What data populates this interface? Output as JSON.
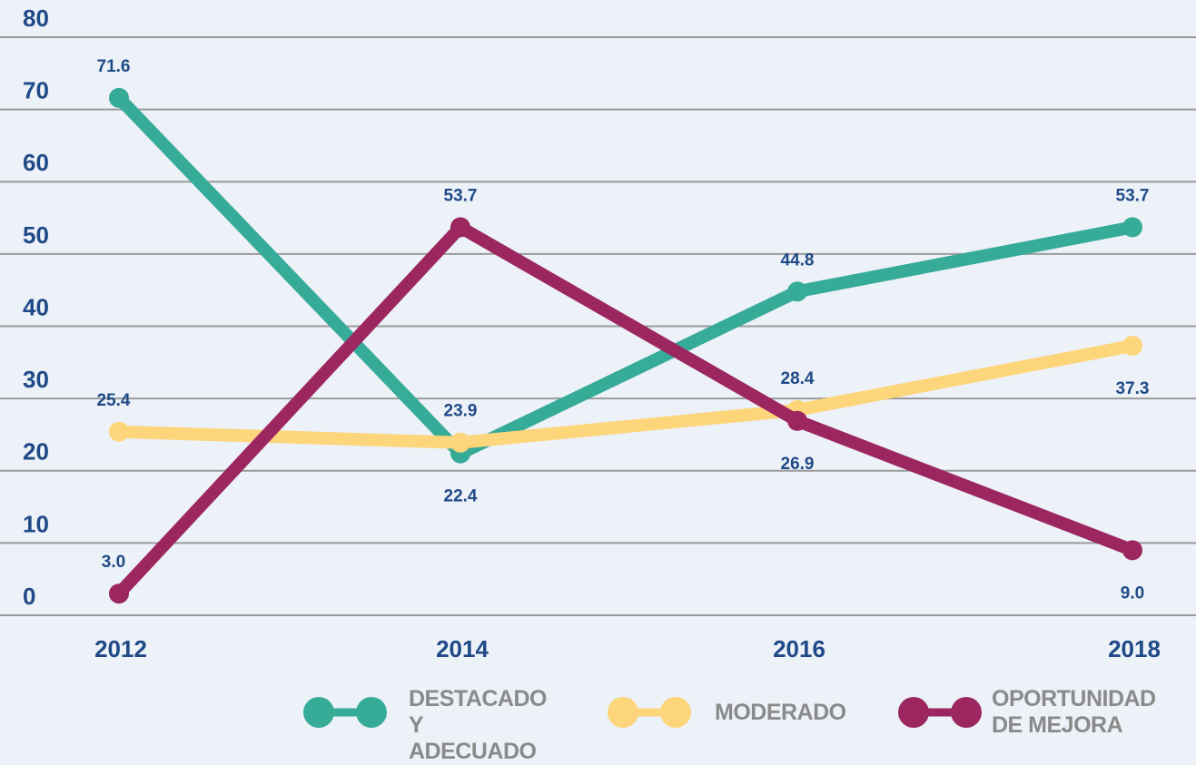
{
  "chart_data": {
    "type": "line",
    "categories": [
      "2012",
      "2014",
      "2016",
      "2018"
    ],
    "series": [
      {
        "name": "DESTACADO Y ADECUADO",
        "color": "#36ab98",
        "values": [
          71.6,
          22.4,
          44.8,
          53.7
        ],
        "value_labels": [
          "71.6",
          "22.4",
          "44.8",
          "53.7"
        ]
      },
      {
        "name": "MODERADO",
        "color": "#fdd57a",
        "values": [
          25.4,
          23.9,
          28.4,
          37.3
        ],
        "value_labels": [
          "25.4",
          "23.9",
          "28.4",
          "37.3"
        ]
      },
      {
        "name": "OPORTUNIDAD DE MEJORA",
        "color": "#9c2760",
        "values": [
          3.0,
          53.7,
          26.9,
          9.0
        ],
        "value_labels": [
          "3.0",
          "53.7",
          "26.9",
          "9.0"
        ]
      }
    ],
    "ylim": [
      0,
      80
    ],
    "yticks": [
      0,
      10,
      20,
      30,
      40,
      50,
      60,
      70,
      80
    ],
    "grid": true
  }
}
